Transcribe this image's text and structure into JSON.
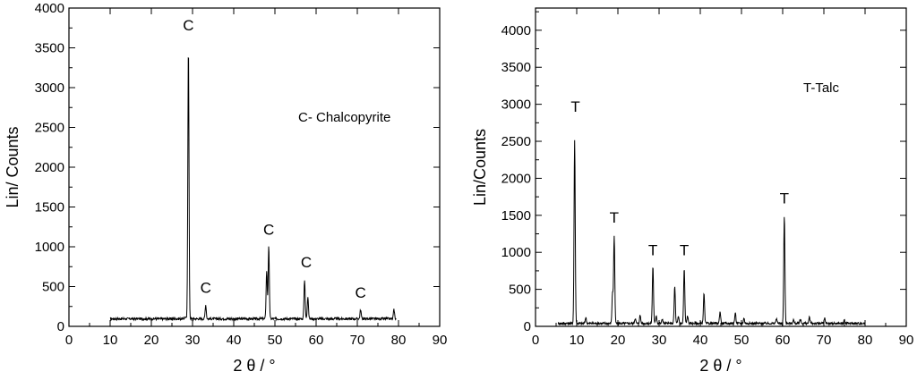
{
  "chart_data": [
    {
      "type": "line",
      "xlabel": "2 θ / °",
      "ylabel": "Lin/ Counts",
      "xlim": [
        0,
        90
      ],
      "ylim": [
        0,
        4000
      ],
      "x_ticks": [
        "0",
        "10",
        "20",
        "30",
        "40",
        "50",
        "60",
        "70",
        "80",
        "90"
      ],
      "y_ticks": [
        "0",
        "500",
        "1000",
        "1500",
        "2000",
        "2500",
        "3000",
        "3500",
        "4000"
      ],
      "grid": false,
      "annotation": "C- Chalcopyrite",
      "baseline": 95,
      "x_range": [
        10,
        79.5
      ],
      "peaks": [
        {
          "x": 28.2,
          "y": 120
        },
        {
          "x": 29.0,
          "y": 3520
        },
        {
          "x": 33.2,
          "y": 270
        },
        {
          "x": 48.0,
          "y": 700
        },
        {
          "x": 48.5,
          "y": 1000
        },
        {
          "x": 57.2,
          "y": 590
        },
        {
          "x": 58.0,
          "y": 380
        },
        {
          "x": 70.8,
          "y": 210
        },
        {
          "x": 78.9,
          "y": 210
        }
      ],
      "peak_labels": [
        {
          "text": "C",
          "x": 29.0,
          "y": 3720
        },
        {
          "text": "C",
          "x": 33.2,
          "y": 420
        },
        {
          "text": "C",
          "x": 48.5,
          "y": 1150
        },
        {
          "text": "C",
          "x": 57.6,
          "y": 740
        },
        {
          "text": "C",
          "x": 70.8,
          "y": 360
        }
      ]
    },
    {
      "type": "line",
      "xlabel": "2 θ / °",
      "ylabel": "Lin/Counts",
      "xlim": [
        0,
        90
      ],
      "ylim": [
        0,
        4300
      ],
      "x_ticks": [
        "0",
        "10",
        "20",
        "30",
        "40",
        "50",
        "60",
        "70",
        "80",
        "90"
      ],
      "y_ticks": [
        "0",
        "500",
        "1000",
        "1500",
        "2000",
        "2500",
        "3000",
        "3500",
        "4000"
      ],
      "grid": false,
      "annotation": "T-Talc",
      "baseline": 40,
      "x_range": [
        5.5,
        80
      ],
      "peaks": [
        {
          "x": 9.5,
          "y": 2520
        },
        {
          "x": 12.2,
          "y": 120
        },
        {
          "x": 18.7,
          "y": 450
        },
        {
          "x": 19.1,
          "y": 1220
        },
        {
          "x": 24.2,
          "y": 110
        },
        {
          "x": 25.4,
          "y": 150
        },
        {
          "x": 28.5,
          "y": 820
        },
        {
          "x": 29.3,
          "y": 150
        },
        {
          "x": 30.8,
          "y": 100
        },
        {
          "x": 33.8,
          "y": 540
        },
        {
          "x": 34.7,
          "y": 130
        },
        {
          "x": 36.1,
          "y": 780
        },
        {
          "x": 36.9,
          "y": 140
        },
        {
          "x": 40.9,
          "y": 440
        },
        {
          "x": 44.8,
          "y": 200
        },
        {
          "x": 48.5,
          "y": 180
        },
        {
          "x": 50.6,
          "y": 110
        },
        {
          "x": 58.5,
          "y": 110
        },
        {
          "x": 60.4,
          "y": 1500
        },
        {
          "x": 62.6,
          "y": 90
        },
        {
          "x": 64.3,
          "y": 100
        },
        {
          "x": 66.5,
          "y": 120
        },
        {
          "x": 70.2,
          "y": 110
        },
        {
          "x": 75.0,
          "y": 80
        }
      ],
      "peak_labels": [
        {
          "text": "T",
          "x": 9.7,
          "y": 2900
        },
        {
          "text": "T",
          "x": 19.1,
          "y": 1400
        },
        {
          "text": "T",
          "x": 28.5,
          "y": 960
        },
        {
          "text": "T",
          "x": 36.1,
          "y": 960
        },
        {
          "text": "T",
          "x": 60.4,
          "y": 1660
        }
      ]
    }
  ]
}
